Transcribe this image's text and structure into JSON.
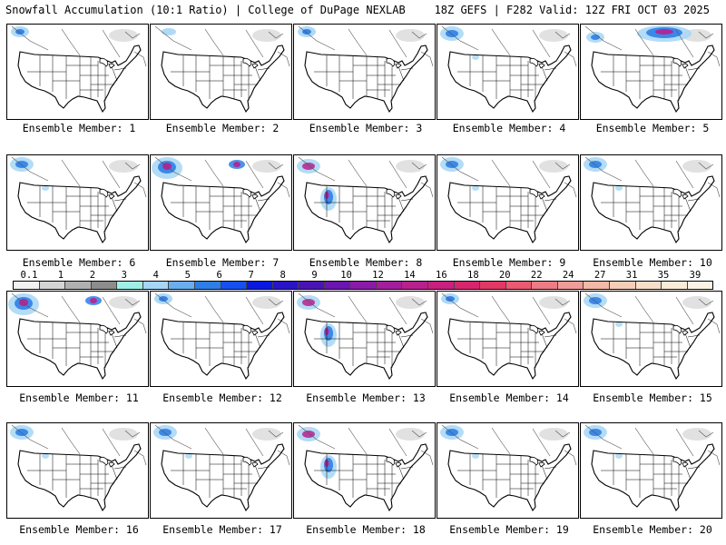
{
  "header": {
    "left": "Snowfall Accumulation (10:1 Ratio) | College of DuPage NEXLAB",
    "right": "18Z GEFS | F282 Valid: 12Z FRI OCT 03 2025"
  },
  "members": [
    {
      "label": "Ensemble Member: 1",
      "snow": "light"
    },
    {
      "label": "Ensemble Member: 2",
      "snow": "minimal"
    },
    {
      "label": "Ensemble Member: 3",
      "snow": "light"
    },
    {
      "label": "Ensemble Member: 4",
      "snow": "moderate"
    },
    {
      "label": "Ensemble Member: 5",
      "snow": "heavy-canada"
    },
    {
      "label": "Ensemble Member: 6",
      "snow": "moderate"
    },
    {
      "label": "Ensemble Member: 7",
      "snow": "heavy"
    },
    {
      "label": "Ensemble Member: 8",
      "snow": "heavy-rockies"
    },
    {
      "label": "Ensemble Member: 9",
      "snow": "moderate"
    },
    {
      "label": "Ensemble Member: 10",
      "snow": "moderate"
    },
    {
      "label": "Ensemble Member: 11",
      "snow": "heavy"
    },
    {
      "label": "Ensemble Member: 12",
      "snow": "light"
    },
    {
      "label": "Ensemble Member: 13",
      "snow": "heavy-rockies"
    },
    {
      "label": "Ensemble Member: 14",
      "snow": "light"
    },
    {
      "label": "Ensemble Member: 15",
      "snow": "moderate"
    },
    {
      "label": "Ensemble Member: 16",
      "snow": "moderate"
    },
    {
      "label": "Ensemble Member: 17",
      "snow": "moderate"
    },
    {
      "label": "Ensemble Member: 18",
      "snow": "heavy-rockies"
    },
    {
      "label": "Ensemble Member: 19",
      "snow": "moderate"
    },
    {
      "label": "Ensemble Member: 20",
      "snow": "moderate"
    }
  ],
  "legend": {
    "labels": [
      "0.1",
      "1",
      "2",
      "3",
      "4",
      "5",
      "6",
      "7",
      "8",
      "9",
      "10",
      "12",
      "14",
      "16",
      "18",
      "20",
      "22",
      "24",
      "27",
      "31",
      "35",
      "39"
    ],
    "colors": [
      "#f2f2f2",
      "#d4d4d4",
      "#b0b0b0",
      "#8c8c8c",
      "#9ef0e6",
      "#a6d6f5",
      "#6aaef0",
      "#2e7ee8",
      "#1650f0",
      "#0b18e0",
      "#2b14c8",
      "#4a14b4",
      "#6a16b0",
      "#8a1aa8",
      "#a31e9c",
      "#b8208e",
      "#c8207e",
      "#d8266e",
      "#e23866",
      "#ea5a70",
      "#ee7c84",
      "#f09c98",
      "#f2b8a8",
      "#f6ceb8",
      "#f8dec8",
      "#faebd8",
      "#fcf3e6"
    ]
  },
  "colors": {
    "background": "#ffffff",
    "map_lines": "#000000",
    "snow_light": "#a6d6f5",
    "snow_mid": "#2e7ee8",
    "snow_heavy": "#b8208e",
    "canada_gray": "#c8c8c8"
  }
}
